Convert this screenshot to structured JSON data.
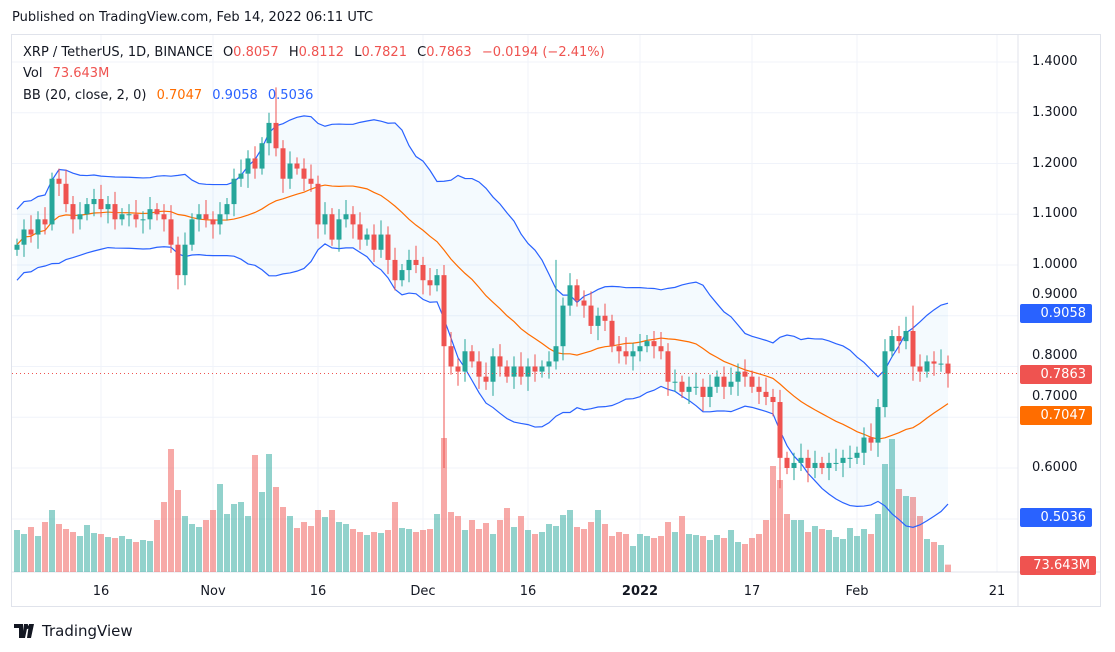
{
  "published": "Published on TradingView.com, Feb 14, 2022 06:11 UTC",
  "legend": {
    "symbol": "XRP / TetherUS, 1D, BINANCE",
    "o_label": "O",
    "o": "0.8057",
    "h_label": "H",
    "h": "0.8112",
    "l_label": "L",
    "l": "0.7821",
    "c_label": "C",
    "c": "0.7863",
    "change": "−0.0194 (−2.41%)",
    "vol_label": "Vol",
    "vol": "73.643M",
    "bb_label": "BB (20, close, 2, 0)",
    "bb_basis": "0.7047",
    "bb_upper": "0.9058",
    "bb_lower": "0.5036"
  },
  "price_axis": [
    "1.4000",
    "1.3000",
    "1.2000",
    "1.1000",
    "1.0000",
    "0.9000",
    "0.8000",
    "0.7000",
    "0.6000"
  ],
  "badges": {
    "upper": "0.9058",
    "last": "0.7863",
    "basis": "0.7047",
    "lower": "0.5036",
    "volume": "73.643M"
  },
  "time_axis": [
    {
      "label": "16",
      "index": 12
    },
    {
      "label": "Nov",
      "index": 28
    },
    {
      "label": "16",
      "index": 43
    },
    {
      "label": "Dec",
      "index": 58
    },
    {
      "label": "16",
      "index": 73
    },
    {
      "label": "2022",
      "index": 89,
      "bold": true
    },
    {
      "label": "17",
      "index": 105
    },
    {
      "label": "Feb",
      "index": 120
    },
    {
      "label": "21",
      "index": 140
    }
  ],
  "colors": {
    "up": "#26a69a",
    "down": "#ef5350",
    "upper": "#2962ff",
    "basis": "#ff6d00",
    "grid": "#f0f3fa"
  },
  "footer": {
    "brand": "TradingView"
  },
  "chart_data": {
    "type": "candlestick",
    "start_date": "2021-10-04",
    "first_open": 1.03,
    "close": [
      1.04,
      1.07,
      1.06,
      1.09,
      1.08,
      1.17,
      1.16,
      1.12,
      1.09,
      1.1,
      1.12,
      1.13,
      1.11,
      1.12,
      1.09,
      1.1,
      1.1,
      1.09,
      1.09,
      1.11,
      1.1,
      1.09,
      1.04,
      0.98,
      1.04,
      1.09,
      1.1,
      1.09,
      1.08,
      1.1,
      1.12,
      1.17,
      1.18,
      1.21,
      1.19,
      1.24,
      1.28,
      1.23,
      1.17,
      1.2,
      1.19,
      1.17,
      1.16,
      1.08,
      1.1,
      1.05,
      1.09,
      1.1,
      1.08,
      1.05,
      1.06,
      1.03,
      1.06,
      1.01,
      0.97,
      0.99,
      1.01,
      1.0,
      0.97,
      0.96,
      0.98,
      0.84,
      0.8,
      0.79,
      0.83,
      0.81,
      0.78,
      0.77,
      0.82,
      0.8,
      0.78,
      0.8,
      0.78,
      0.8,
      0.79,
      0.8,
      0.81,
      0.84,
      0.92,
      0.96,
      0.93,
      0.92,
      0.88,
      0.9,
      0.89,
      0.84,
      0.83,
      0.82,
      0.83,
      0.84,
      0.85,
      0.84,
      0.83,
      0.77,
      0.77,
      0.75,
      0.76,
      0.76,
      0.74,
      0.76,
      0.78,
      0.76,
      0.77,
      0.79,
      0.78,
      0.76,
      0.75,
      0.74,
      0.73,
      0.62,
      0.6,
      0.61,
      0.62,
      0.6,
      0.61,
      0.6,
      0.61,
      0.61,
      0.62,
      0.62,
      0.63,
      0.66,
      0.65,
      0.72,
      0.83,
      0.86,
      0.85,
      0.87,
      0.8,
      0.79,
      0.81,
      0.8057,
      0.8057,
      0.7863
    ],
    "high_overrides": {
      "37": 1.35,
      "77": 1.01,
      "128": 0.92
    },
    "low_overrides": {
      "61": 0.6,
      "109": 0.56
    },
    "volume_m": [
      420,
      380,
      450,
      360,
      500,
      620,
      480,
      430,
      400,
      360,
      470,
      390,
      380,
      350,
      340,
      360,
      330,
      300,
      320,
      310,
      520,
      700,
      1230,
      820,
      560,
      480,
      450,
      520,
      620,
      880,
      580,
      680,
      700,
      560,
      1170,
      800,
      1180,
      850,
      650,
      560,
      440,
      500,
      460,
      620,
      550,
      620,
      500,
      480,
      430,
      400,
      370,
      400,
      390,
      420,
      700,
      440,
      430,
      400,
      420,
      430,
      580,
      1340,
      600,
      560,
      420,
      520,
      430,
      490,
      380,
      520,
      640,
      450,
      560,
      420,
      380,
      400,
      480,
      460,
      570,
      620,
      450,
      430,
      500,
      620,
      480,
      360,
      400,
      380,
      260,
      380,
      360,
      340,
      360,
      500,
      400,
      560,
      380,
      370,
      360,
      320,
      370,
      340,
      420,
      300,
      280,
      340,
      380,
      520,
      1060,
      920,
      580,
      520,
      520,
      400,
      460,
      430,
      420,
      350,
      330,
      440,
      360,
      430,
      380,
      580,
      1080,
      1330,
      830,
      760,
      750,
      560,
      330,
      300,
      270,
      73.643
    ],
    "bb": {
      "length": 20,
      "source": "close",
      "mult": 2,
      "offset": 0
    },
    "ylim": [
      0.45,
      1.45
    ]
  }
}
